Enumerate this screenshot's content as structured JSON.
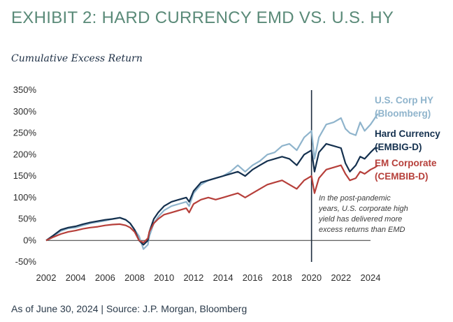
{
  "header": {
    "title": "EXHIBIT 2: HARD CURRENCY EMD VS. U.S. HY",
    "subtitle": "Cumulative Excess Return"
  },
  "footer": {
    "source": "As of June 30, 2024 | Source: J.P. Morgan, Bloomberg"
  },
  "chart_data": {
    "type": "line",
    "ylim": [
      -50,
      350
    ],
    "xlim": [
      2002,
      2024
    ],
    "y_ticks": [
      350,
      300,
      250,
      200,
      150,
      100,
      50,
      0,
      -50
    ],
    "y_tick_labels": [
      "350%",
      "300%",
      "250%",
      "200%",
      "150%",
      "100%",
      "50%",
      "0%",
      "-50%"
    ],
    "x_ticks": [
      2002,
      2004,
      2006,
      2008,
      2010,
      2012,
      2014,
      2016,
      2018,
      2020,
      2022,
      2024
    ],
    "x_tick_labels": [
      "2002",
      "2004",
      "2006",
      "2008",
      "2010",
      "2012",
      "2014",
      "2016",
      "2018",
      "2020",
      "2022",
      "2024"
    ],
    "grid": false,
    "legend_position": "right",
    "series": [
      {
        "name_lines": [
          "U.S. Corp HY",
          "(Bloomberg)"
        ],
        "color": "#8fb4cc",
        "x": [
          2002.0,
          2002.5,
          2003.0,
          2003.5,
          2004.0,
          2004.5,
          2005.0,
          2005.5,
          2006.0,
          2006.5,
          2007.0,
          2007.4,
          2007.7,
          2008.0,
          2008.3,
          2008.6,
          2008.9,
          2009.0,
          2009.3,
          2009.6,
          2010.0,
          2010.5,
          2011.0,
          2011.5,
          2011.7,
          2012.0,
          2012.5,
          2013.0,
          2013.5,
          2014.0,
          2014.5,
          2015.0,
          2015.5,
          2016.0,
          2016.5,
          2017.0,
          2017.5,
          2018.0,
          2018.5,
          2019.0,
          2019.5,
          2020.0,
          2020.2,
          2020.5,
          2021.0,
          2021.5,
          2022.0,
          2022.3,
          2022.6,
          2023.0,
          2023.3,
          2023.6,
          2024.0,
          2024.3,
          2024.5
        ],
        "y": [
          0,
          10,
          22,
          28,
          30,
          35,
          40,
          43,
          46,
          50,
          53,
          48,
          40,
          25,
          10,
          -20,
          -10,
          10,
          40,
          55,
          70,
          80,
          85,
          90,
          80,
          110,
          130,
          140,
          145,
          150,
          160,
          175,
          160,
          175,
          185,
          200,
          205,
          220,
          225,
          210,
          240,
          255,
          190,
          240,
          270,
          275,
          285,
          260,
          250,
          245,
          275,
          255,
          270,
          285,
          295
        ]
      },
      {
        "name_lines": [
          "Hard Currency",
          "(EMBIG-D)"
        ],
        "color": "#14304e",
        "x": [
          2002.0,
          2002.5,
          2003.0,
          2003.5,
          2004.0,
          2004.5,
          2005.0,
          2005.5,
          2006.0,
          2006.5,
          2007.0,
          2007.4,
          2007.7,
          2008.0,
          2008.3,
          2008.6,
          2008.9,
          2009.0,
          2009.3,
          2009.6,
          2010.0,
          2010.5,
          2011.0,
          2011.5,
          2011.7,
          2012.0,
          2012.5,
          2013.0,
          2013.5,
          2014.0,
          2014.5,
          2015.0,
          2015.5,
          2016.0,
          2016.5,
          2017.0,
          2017.5,
          2018.0,
          2018.5,
          2019.0,
          2019.5,
          2020.0,
          2020.2,
          2020.5,
          2021.0,
          2021.5,
          2022.0,
          2022.3,
          2022.6,
          2023.0,
          2023.3,
          2023.6,
          2024.0,
          2024.3,
          2024.5
        ],
        "y": [
          0,
          12,
          25,
          30,
          33,
          38,
          42,
          45,
          48,
          50,
          53,
          48,
          40,
          25,
          0,
          -10,
          0,
          20,
          50,
          65,
          80,
          90,
          95,
          100,
          90,
          115,
          135,
          140,
          145,
          150,
          155,
          160,
          150,
          165,
          175,
          185,
          190,
          195,
          190,
          175,
          200,
          210,
          160,
          205,
          225,
          220,
          215,
          180,
          160,
          175,
          195,
          190,
          205,
          215,
          215
        ]
      },
      {
        "name_lines": [
          "EM Corporate",
          "(CEMBIB-D)"
        ],
        "color": "#b63f3a",
        "x": [
          2002.0,
          2002.5,
          2003.0,
          2003.5,
          2004.0,
          2004.5,
          2005.0,
          2005.5,
          2006.0,
          2006.5,
          2007.0,
          2007.4,
          2007.7,
          2008.0,
          2008.3,
          2008.6,
          2008.9,
          2009.0,
          2009.3,
          2009.6,
          2010.0,
          2010.5,
          2011.0,
          2011.5,
          2011.7,
          2012.0,
          2012.5,
          2013.0,
          2013.5,
          2014.0,
          2014.5,
          2015.0,
          2015.5,
          2016.0,
          2016.5,
          2017.0,
          2017.5,
          2018.0,
          2018.5,
          2019.0,
          2019.5,
          2020.0,
          2020.2,
          2020.5,
          2021.0,
          2021.5,
          2022.0,
          2022.3,
          2022.6,
          2023.0,
          2023.3,
          2023.6,
          2024.0,
          2024.3,
          2024.5
        ],
        "y": [
          0,
          8,
          15,
          20,
          23,
          27,
          30,
          32,
          35,
          37,
          38,
          35,
          30,
          20,
          0,
          -5,
          5,
          20,
          40,
          50,
          60,
          65,
          70,
          75,
          65,
          85,
          95,
          100,
          95,
          100,
          105,
          110,
          100,
          110,
          120,
          130,
          135,
          140,
          130,
          120,
          140,
          150,
          110,
          145,
          165,
          170,
          175,
          155,
          140,
          145,
          160,
          155,
          165,
          170,
          175
        ]
      }
    ],
    "vline_x": 2020.0,
    "annotation_lines": [
      "In the post-pandemic",
      "years, U.S. corporate high",
      "yield has delivered more",
      "excess returns than EMD"
    ]
  }
}
